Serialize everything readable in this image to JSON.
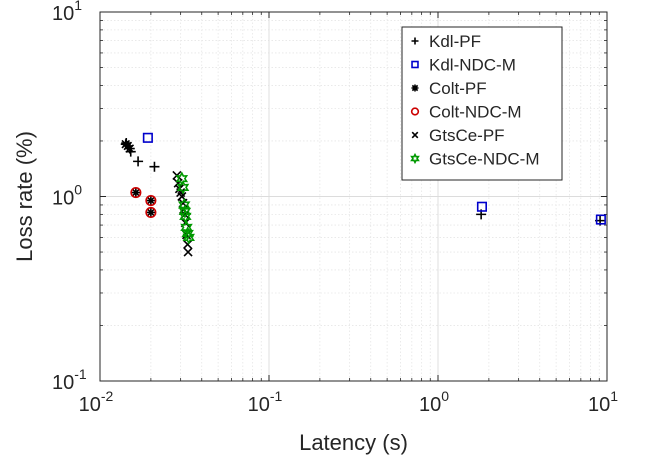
{
  "chart_data": {
    "type": "scatter",
    "x_scale": "log",
    "y_scale": "log",
    "xlim": [
      0.01,
      10
    ],
    "ylim": [
      0.1,
      10
    ],
    "xlabel": "Latency (s)",
    "ylabel": "Loss rate (%)",
    "x_ticks": [
      {
        "value": 0.01,
        "base": "10",
        "exp": "-2"
      },
      {
        "value": 0.1,
        "base": "10",
        "exp": "-1"
      },
      {
        "value": 1,
        "base": "10",
        "exp": "0"
      },
      {
        "value": 10,
        "base": "10",
        "exp": "1"
      }
    ],
    "y_ticks": [
      {
        "value": 0.1,
        "base": "10",
        "exp": "-1"
      },
      {
        "value": 1,
        "base": "10",
        "exp": "0"
      },
      {
        "value": 10,
        "base": "10",
        "exp": "1"
      }
    ],
    "grid": true,
    "minor_grid": true,
    "legend_position": "top-right",
    "series": [
      {
        "name": "Kdl-PF",
        "marker": "plus",
        "color": "#000000",
        "x": [
          0.0143,
          0.0152,
          0.0168,
          0.021,
          1.8,
          9.1
        ],
        "y": [
          1.95,
          1.75,
          1.55,
          1.45,
          0.8,
          0.74
        ]
      },
      {
        "name": "Kdl-NDC-M",
        "marker": "square",
        "color": "#0000CC",
        "x": [
          0.0192,
          1.82,
          9.2
        ],
        "y": [
          2.08,
          0.88,
          0.75
        ]
      },
      {
        "name": "Colt-PF",
        "marker": "asterisk",
        "color": "#000000",
        "x": [
          0.0142,
          0.0146,
          0.015,
          0.0163,
          0.02,
          0.02
        ],
        "y": [
          1.92,
          1.88,
          1.82,
          1.05,
          0.95,
          0.82
        ]
      },
      {
        "name": "Colt-NDC-M",
        "marker": "circle",
        "color": "#CC0000",
        "x": [
          0.0163,
          0.02,
          0.02
        ],
        "y": [
          1.05,
          0.95,
          0.82
        ]
      },
      {
        "name": "GtsCe-PF",
        "marker": "cross",
        "color": "#000000",
        "x": [
          0.0285,
          0.029,
          0.0295,
          0.03,
          0.0305,
          0.031,
          0.0312,
          0.0318,
          0.032,
          0.0325,
          0.033,
          0.0332
        ],
        "y": [
          1.3,
          1.18,
          1.1,
          1.05,
          1.0,
          0.92,
          0.85,
          0.8,
          0.72,
          0.62,
          0.55,
          0.5
        ]
      },
      {
        "name": "GtsCe-NDC-M",
        "marker": "hexagram",
        "color": "#009900",
        "x": [
          0.0305,
          0.031,
          0.0315,
          0.0318,
          0.032,
          0.0325,
          0.033,
          0.0335
        ],
        "y": [
          1.25,
          1.12,
          0.9,
          0.83,
          0.78,
          0.68,
          0.63,
          0.6
        ]
      }
    ]
  }
}
